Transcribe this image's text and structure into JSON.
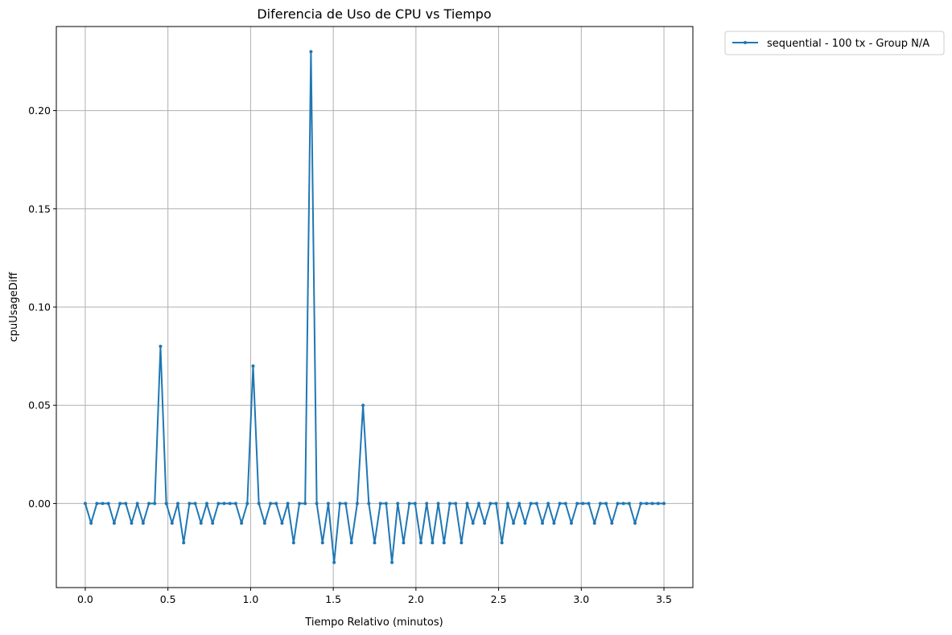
{
  "chart_data": {
    "type": "line",
    "title": "Diferencia de Uso de CPU vs Tiempo",
    "xlabel": "Tiempo Relativo (minutos)",
    "ylabel": "cpuUsageDiff",
    "xlim": [
      -0.175,
      3.675
    ],
    "ylim": [
      -0.0428,
      0.2428
    ],
    "xticks": [
      0.0,
      0.5,
      1.0,
      1.5,
      2.0,
      2.5,
      3.0,
      3.5
    ],
    "xtick_labels": [
      "0.0",
      "0.5",
      "1.0",
      "1.5",
      "2.0",
      "2.5",
      "3.0",
      "3.5"
    ],
    "yticks": [
      0.0,
      0.05,
      0.1,
      0.15,
      0.2
    ],
    "ytick_labels": [
      "0.00",
      "0.05",
      "0.10",
      "0.15",
      "0.20"
    ],
    "grid": true,
    "legend_position": "outside-top-right",
    "color": "#1f77b4",
    "series": [
      {
        "name": "sequential - 100 tx - Group N/A",
        "x": [
          0.0,
          0.035,
          0.07,
          0.105,
          0.14,
          0.175,
          0.21,
          0.245,
          0.28,
          0.315,
          0.35,
          0.385,
          0.42,
          0.455,
          0.49,
          0.525,
          0.56,
          0.595,
          0.63,
          0.665,
          0.7,
          0.735,
          0.77,
          0.805,
          0.84,
          0.875,
          0.91,
          0.945,
          0.98,
          1.015,
          1.05,
          1.085,
          1.12,
          1.155,
          1.19,
          1.225,
          1.26,
          1.295,
          1.33,
          1.365,
          1.4,
          1.435,
          1.47,
          1.505,
          1.54,
          1.575,
          1.61,
          1.645,
          1.68,
          1.715,
          1.75,
          1.785,
          1.82,
          1.855,
          1.89,
          1.925,
          1.96,
          1.995,
          2.03,
          2.065,
          2.1,
          2.135,
          2.17,
          2.205,
          2.24,
          2.275,
          2.31,
          2.345,
          2.38,
          2.415,
          2.45,
          2.485,
          2.52,
          2.555,
          2.59,
          2.625,
          2.66,
          2.695,
          2.73,
          2.765,
          2.8,
          2.835,
          2.87,
          2.905,
          2.94,
          2.975,
          3.01,
          3.045,
          3.08,
          3.115,
          3.15,
          3.185,
          3.22,
          3.255,
          3.29,
          3.325,
          3.36,
          3.395,
          3.43,
          3.465,
          3.5
        ],
        "y": [
          0,
          -0.01,
          0,
          0,
          0,
          -0.01,
          0,
          0,
          -0.01,
          0,
          -0.01,
          0,
          0,
          0.08,
          0,
          -0.01,
          0,
          -0.02,
          0,
          0,
          -0.01,
          0,
          -0.01,
          0,
          0,
          0,
          0,
          -0.01,
          0,
          0.07,
          0,
          -0.01,
          0,
          0,
          -0.01,
          0,
          -0.02,
          0,
          0,
          0.23,
          0,
          -0.02,
          0,
          -0.03,
          0,
          0,
          -0.02,
          0,
          0.05,
          0,
          -0.02,
          0,
          0,
          -0.03,
          0,
          -0.02,
          0,
          0,
          -0.02,
          0,
          -0.02,
          0,
          -0.02,
          0,
          0,
          -0.02,
          0,
          -0.01,
          0,
          -0.01,
          0,
          0,
          -0.02,
          0,
          -0.01,
          0,
          -0.01,
          0,
          0,
          -0.01,
          0,
          -0.01,
          0,
          0,
          -0.01,
          0,
          0,
          0,
          -0.01,
          0,
          0,
          -0.01,
          0,
          0,
          0,
          -0.01,
          0,
          0,
          0,
          0,
          0
        ]
      }
    ]
  }
}
